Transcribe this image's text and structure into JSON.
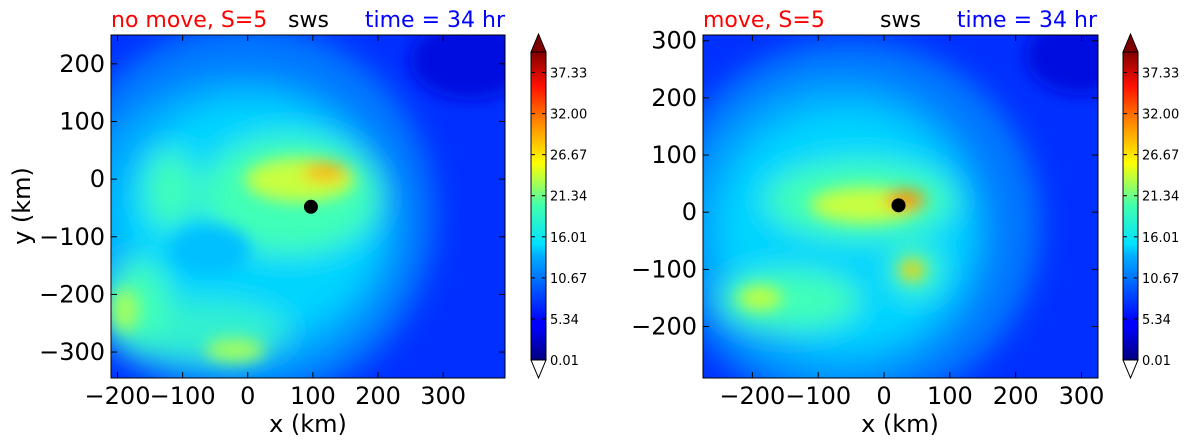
{
  "chart_data": [
    {
      "type": "heatmap",
      "title_left": "no move, S=5",
      "title_center": "sws",
      "title_right": "time = 34 hr",
      "title_colors": {
        "left": "#ff0000",
        "center": "#000000",
        "right": "#0000ff"
      },
      "xlabel": "x (km)",
      "ylabel": "y (km)",
      "xlim": [
        -210,
        395
      ],
      "ylim": [
        -345,
        250
      ],
      "xticks": [
        -200,
        -100,
        0,
        100,
        200,
        300
      ],
      "xtick_labels": [
        "−200",
        "−100",
        "0",
        "100",
        "200",
        "300"
      ],
      "yticks": [
        -300,
        -200,
        -100,
        0,
        100,
        200
      ],
      "ytick_labels": [
        "−300",
        "−200",
        "−100",
        "0",
        "100",
        "200"
      ],
      "center": {
        "x": 97,
        "y": -48
      },
      "colorbar": {
        "min": 0.01,
        "max": 40,
        "ticks": [
          0.01,
          5.34,
          10.67,
          16.01,
          21.34,
          26.67,
          32.0,
          37.33
        ],
        "tick_labels": [
          "0.01",
          "5.34",
          "10.67",
          "16.01",
          "21.34",
          "26.67",
          "32.00",
          "37.33"
        ]
      }
    },
    {
      "type": "heatmap",
      "title_left": "move, S=5",
      "title_center": "sws",
      "title_right": "time = 34 hr",
      "title_colors": {
        "left": "#ff0000",
        "center": "#000000",
        "right": "#0000ff"
      },
      "xlabel": "x (km)",
      "ylabel": "",
      "xlim": [
        -275,
        325
      ],
      "ylim": [
        -290,
        310
      ],
      "xticks": [
        -200,
        -100,
        0,
        100,
        200,
        300
      ],
      "xtick_labels": [
        "−200",
        "−100",
        "0",
        "100",
        "200",
        "300"
      ],
      "yticks": [
        -200,
        -100,
        0,
        100,
        200,
        300
      ],
      "ytick_labels": [
        "−200",
        "−100",
        "0",
        "100",
        "200",
        "300"
      ],
      "center": {
        "x": 22,
        "y": 12
      },
      "colorbar": {
        "min": 0.01,
        "max": 40,
        "ticks": [
          0.01,
          5.34,
          10.67,
          16.01,
          21.34,
          26.67,
          32.0,
          37.33
        ],
        "tick_labels": [
          "0.01",
          "5.34",
          "10.67",
          "16.01",
          "21.34",
          "26.67",
          "32.00",
          "37.33"
        ]
      }
    }
  ]
}
